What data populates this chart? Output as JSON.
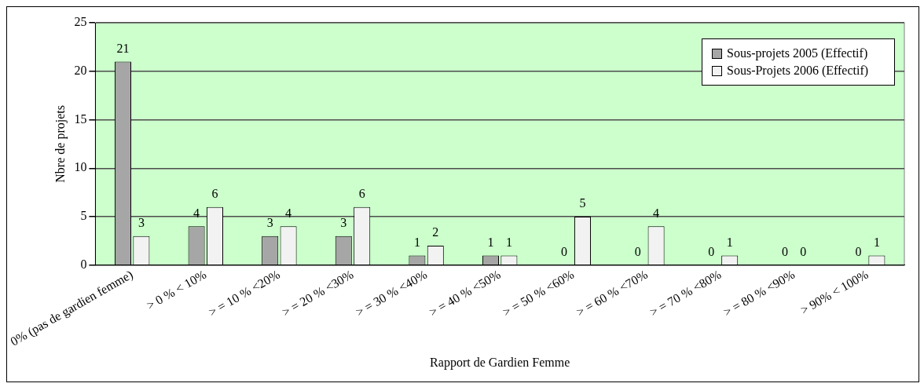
{
  "chart_data": {
    "type": "bar",
    "xlabel": "Rapport de Gardien Femme",
    "ylabel": "Nbre de projets",
    "categories": [
      "0% (pas de gardien femme)",
      "> 0 % < 10%",
      "> = 10 % <20%",
      "> = 20 % <30%",
      "> = 30 % <40%",
      "> = 40 % <50%",
      "> = 50 % <60%",
      "> = 60 % <70%",
      "> = 70 % <80%",
      "> = 80 % <90%",
      "> 90% < 100%"
    ],
    "series": [
      {
        "name": "Sous-projets 2005 (Effectif)",
        "color": "#a6a6a6",
        "values": [
          21,
          4,
          3,
          3,
          1,
          1,
          0,
          0,
          0,
          0,
          0
        ]
      },
      {
        "name": "Sous-Projets 2006 (Effectif)",
        "color": "#f2f2f2",
        "values": [
          3,
          6,
          4,
          6,
          2,
          1,
          5,
          4,
          1,
          0,
          1
        ]
      }
    ],
    "ylim": [
      0,
      25
    ],
    "yticks": [
      0,
      5,
      10,
      15,
      20,
      25
    ],
    "grid": "y",
    "legend": "top right",
    "data_labels": true
  }
}
